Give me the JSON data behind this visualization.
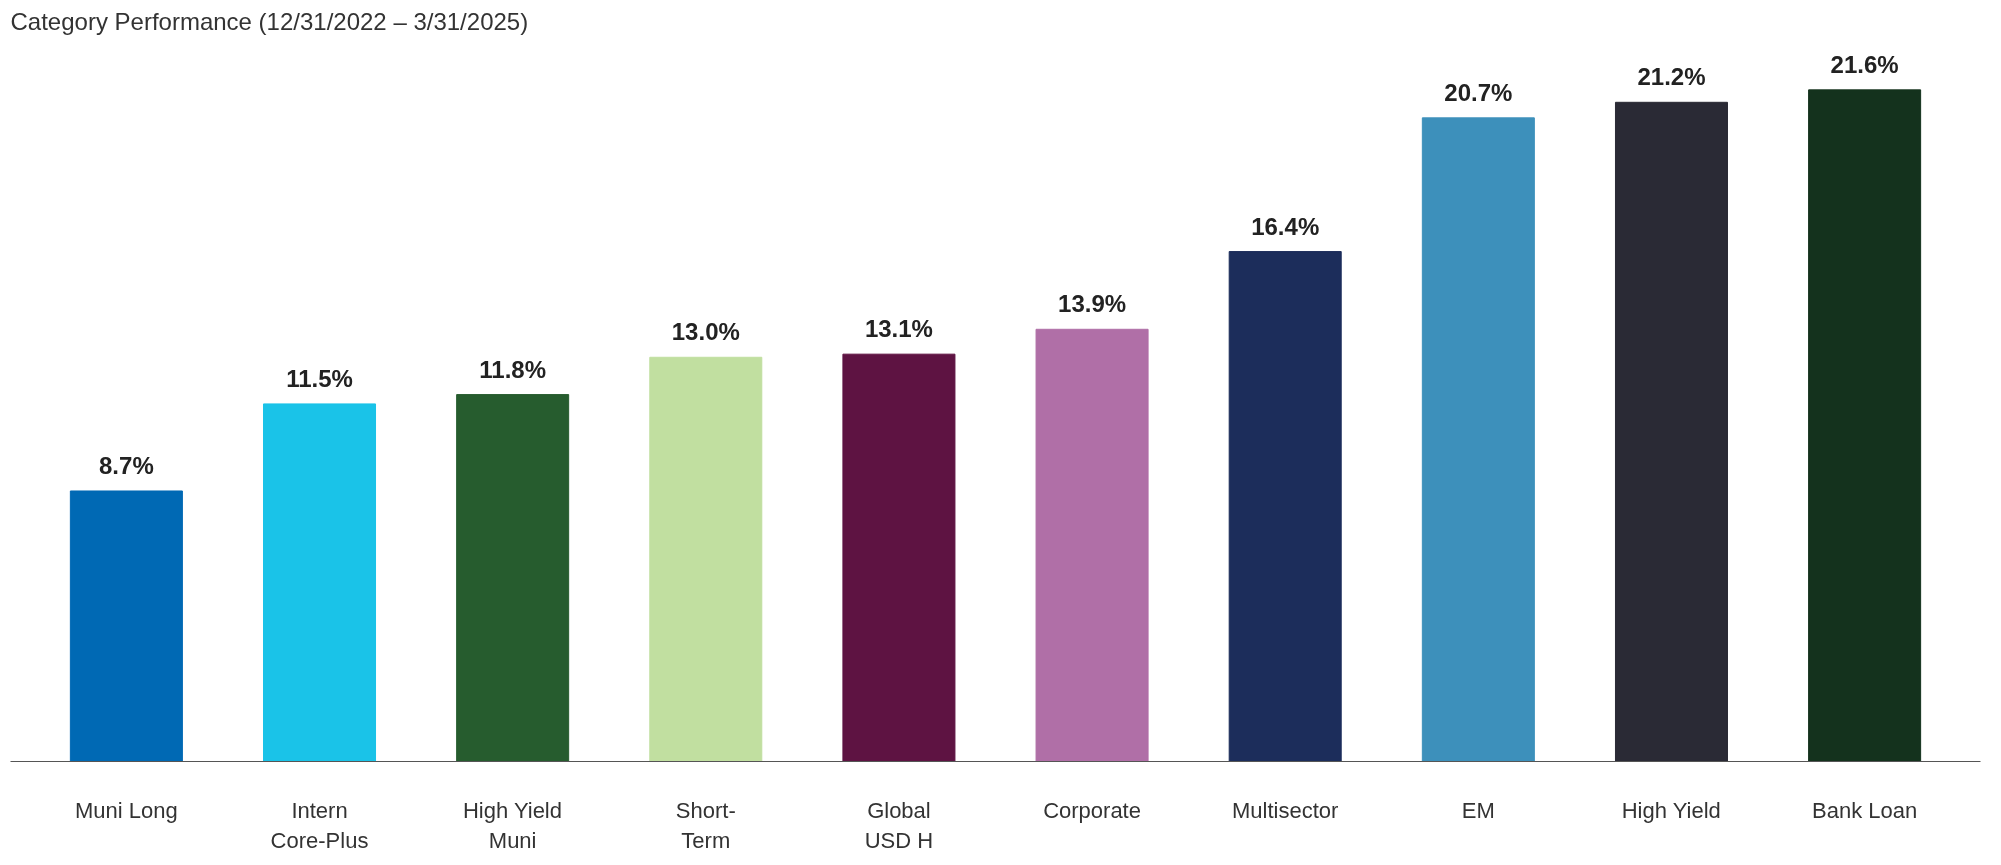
{
  "chart_data": {
    "type": "bar",
    "title": "Category Performance (12/31/2022 – 3/31/2025)",
    "categories": [
      "Muni Long",
      "Intern\nCore-Plus",
      "High Yield\nMuni",
      "Short-\nTerm",
      "Global\nUSD H",
      "Corporate",
      "Multisector",
      "EM",
      "High Yield",
      "Bank Loan"
    ],
    "values": [
      8.7,
      11.5,
      11.8,
      13.0,
      13.1,
      13.9,
      16.4,
      20.7,
      21.2,
      21.6
    ],
    "colors": [
      "#0069b4",
      "#1ac3e8",
      "#265c2e",
      "#c1dfa0",
      "#5e1342",
      "#b06fa7",
      "#1c2d5b",
      "#3d90bb",
      "#2a2a35",
      "#14321d"
    ],
    "value_labels": [
      "8.7%",
      "11.5%",
      "11.8%",
      "13.0%",
      "13.1%",
      "13.9%",
      "16.4%",
      "20.7%",
      "21.2%",
      "21.6%"
    ],
    "grid": false,
    "tick_labels": "x"
  }
}
